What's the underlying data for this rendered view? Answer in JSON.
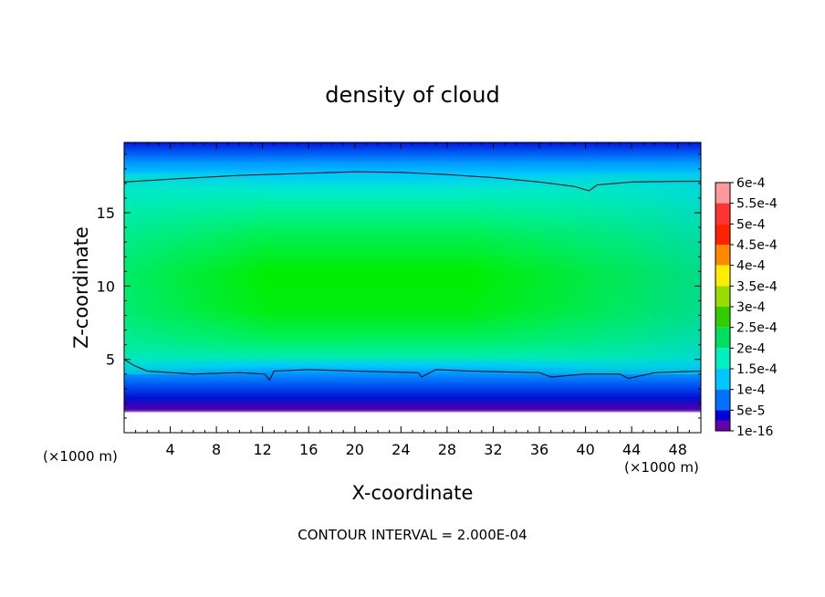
{
  "chart_data": {
    "type": "heatmap",
    "title": "density of cloud",
    "xlabel": "X-coordinate",
    "ylabel": "Z-coordinate",
    "x_unit_left": "(×1000 m)",
    "x_unit_right": "(×1000 m)",
    "footer": "CONTOUR INTERVAL = 2.000E-04",
    "xlim": [
      0,
      50
    ],
    "ylim": [
      0,
      19.8
    ],
    "x_ticks": [
      4,
      8,
      12,
      16,
      20,
      24,
      28,
      32,
      36,
      40,
      44,
      48
    ],
    "x_tick_labels": [
      "4",
      "8",
      "12",
      "16",
      "20",
      "24",
      "28",
      "32",
      "36",
      "40",
      "44",
      "48"
    ],
    "y_ticks": [
      5,
      10,
      15
    ],
    "y_tick_labels": [
      "5",
      "10",
      "15"
    ],
    "colorbar": {
      "labels": [
        "6e-4",
        "5.5e-4",
        "5e-4",
        "4.5e-4",
        "4e-4",
        "3.5e-4",
        "3e-4",
        "2.5e-4",
        "2e-4",
        "1.5e-4",
        "1e-4",
        "5e-5",
        "1e-16"
      ],
      "colors": [
        "#ff9999",
        "#ff3333",
        "#ff2200",
        "#ff8800",
        "#ffee00",
        "#99dd00",
        "#33cc00",
        "#00e060",
        "#00f0c0",
        "#00c8ff",
        "#0070ff",
        "#0000dd",
        "#6600aa"
      ]
    },
    "contour_levels": [
      0.0002
    ],
    "contour_upper": [
      [
        0,
        17.1
      ],
      [
        4,
        17.3
      ],
      [
        10,
        17.55
      ],
      [
        16,
        17.7
      ],
      [
        20,
        17.8
      ],
      [
        24,
        17.75
      ],
      [
        28,
        17.6
      ],
      [
        32,
        17.4
      ],
      [
        36,
        17.1
      ],
      [
        39,
        16.8
      ],
      [
        40.3,
        16.5
      ],
      [
        41,
        16.9
      ],
      [
        44,
        17.1
      ],
      [
        48,
        17.15
      ],
      [
        50,
        17.15
      ]
    ],
    "contour_lower": [
      [
        0,
        5.0
      ],
      [
        0.8,
        4.6
      ],
      [
        2,
        4.2
      ],
      [
        6,
        4.0
      ],
      [
        10,
        4.1
      ],
      [
        12.2,
        4.0
      ],
      [
        12.6,
        3.6
      ],
      [
        13,
        4.2
      ],
      [
        16,
        4.3
      ],
      [
        20,
        4.2
      ],
      [
        25.5,
        4.1
      ],
      [
        25.8,
        3.8
      ],
      [
        27,
        4.3
      ],
      [
        30,
        4.2
      ],
      [
        36,
        4.1
      ],
      [
        37,
        3.8
      ],
      [
        40,
        4.0
      ],
      [
        43,
        4.0
      ],
      [
        43.7,
        3.7
      ],
      [
        46,
        4.1
      ],
      [
        50,
        4.2
      ]
    ],
    "cloud_base": 1.4,
    "grid": false
  }
}
